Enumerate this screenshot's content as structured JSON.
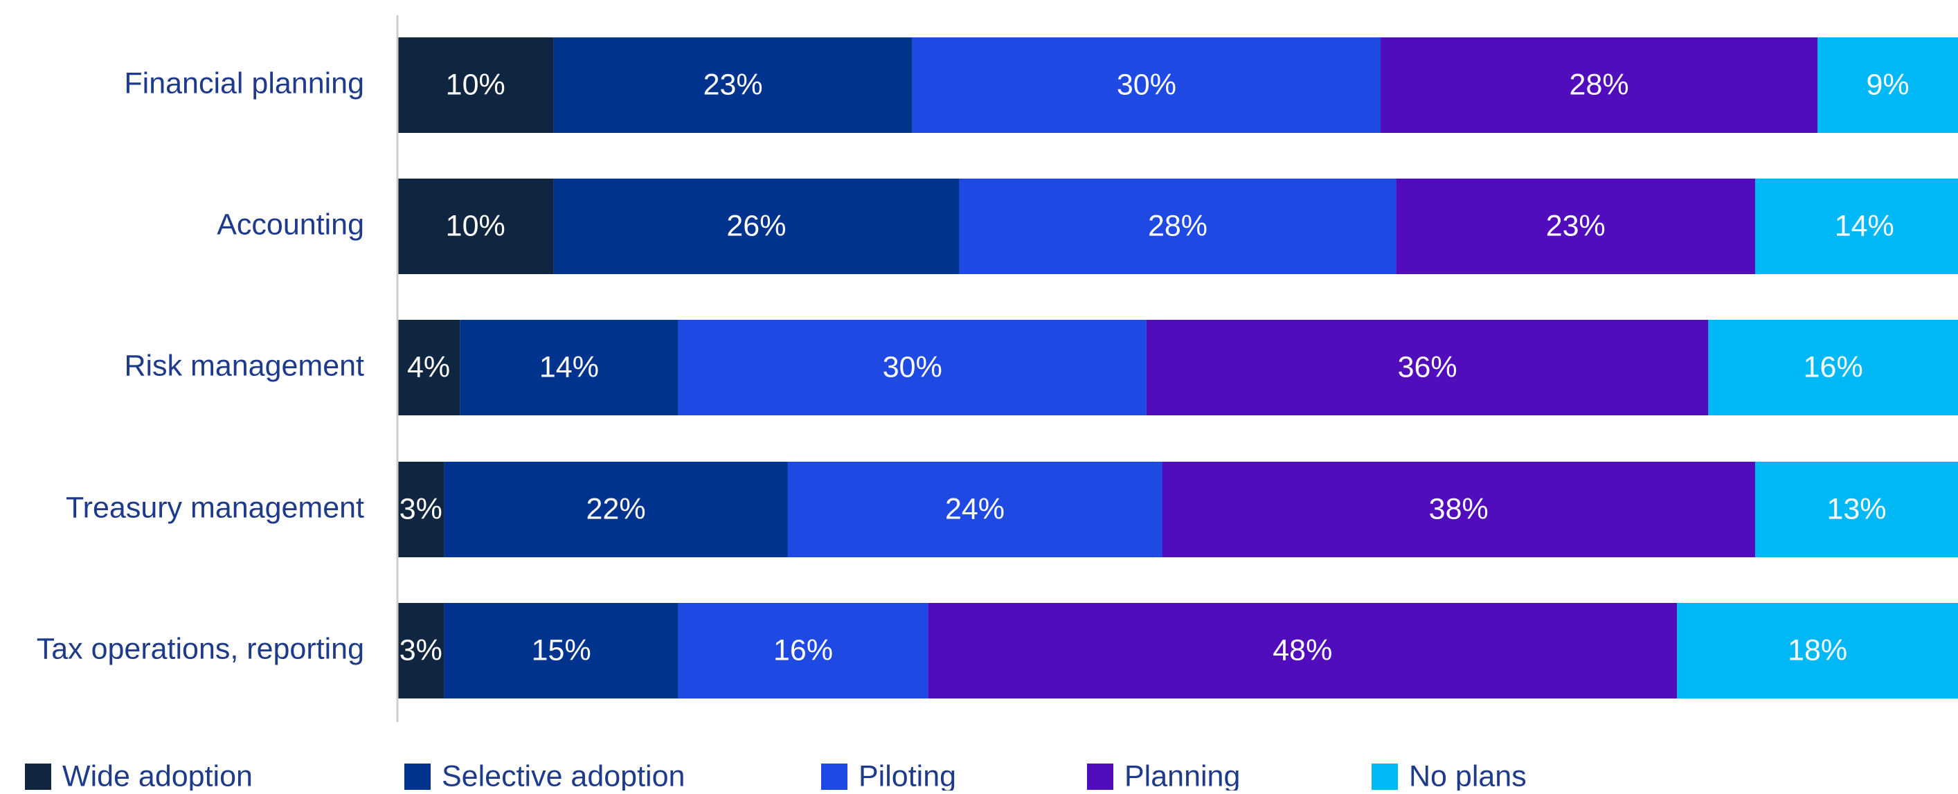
{
  "chart_data": {
    "type": "bar",
    "orientation": "horizontal",
    "stacked": true,
    "categories": [
      "Financial planning",
      "Accounting",
      "Risk management",
      "Treasury management",
      "Tax operations, reporting"
    ],
    "series": [
      {
        "name": "Wide adoption",
        "color": "#0f2540",
        "values": [
          10,
          10,
          4,
          3,
          3
        ]
      },
      {
        "name": "Selective adoption",
        "color": "#00338d",
        "values": [
          23,
          26,
          14,
          22,
          15
        ]
      },
      {
        "name": "Piloting",
        "color": "#1e49e2",
        "values": [
          30,
          28,
          30,
          24,
          16
        ]
      },
      {
        "name": "Planning",
        "color": "#510dbc",
        "values": [
          28,
          23,
          36,
          38,
          48
        ]
      },
      {
        "name": "No plans",
        "color": "#00b8f5",
        "values": [
          9,
          14,
          16,
          13,
          18
        ]
      }
    ],
    "value_suffix": "%",
    "xlim": [
      0,
      100
    ],
    "grid": false,
    "legend_position": "bottom",
    "label_color": "#1e3a8a",
    "data_label_color": "#ffffff"
  }
}
